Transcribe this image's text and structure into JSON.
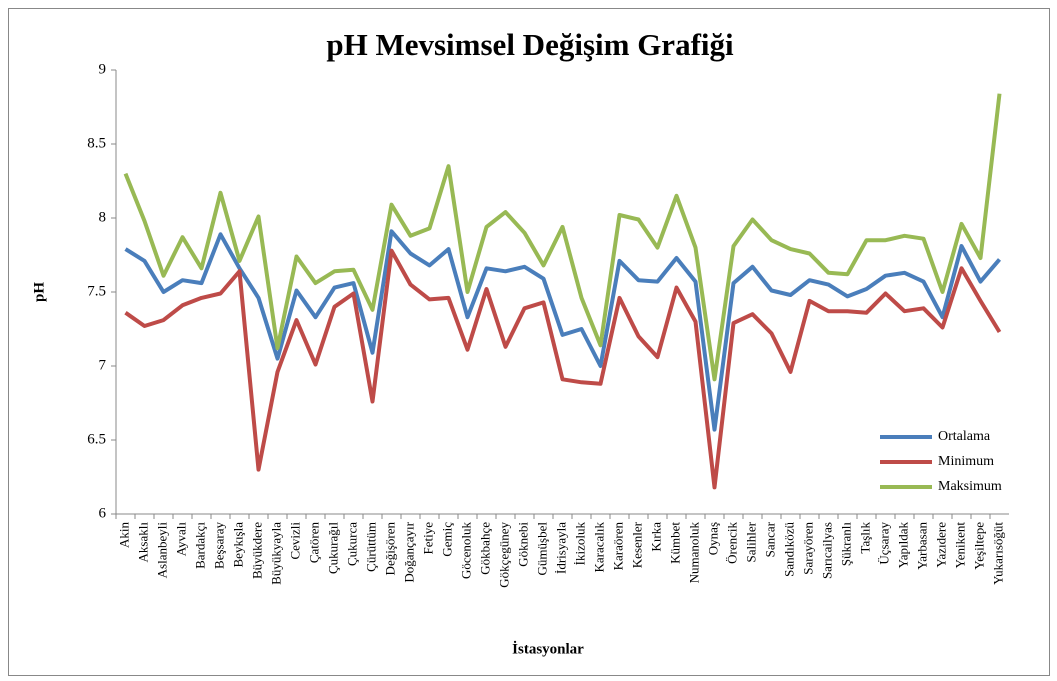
{
  "chart_data": {
    "type": "line",
    "title": "pH Mevsimsel Değişim Grafiği",
    "x_label": "İstasyonlar",
    "y_label": "pH",
    "categories": [
      "Akin",
      "Aksaklı",
      "Aslanbeyli",
      "Ayvalı",
      "Bardakçı",
      "Beşsaray",
      "Beykışla",
      "Büyükdere",
      "Büyükyayla",
      "Cevizli",
      "Çatören",
      "Çukurağıl",
      "Çukurca",
      "Çürüttüm",
      "Değişören",
      "Doğançayır",
      "Fetiye",
      "Gemiç",
      "Göcenoluk",
      "Gökbahçe",
      "Gökçegüney",
      "Göknebi",
      "Gümüşbel",
      "İdrisyayla",
      "İkizoluk",
      "Karacalık",
      "Karaören",
      "Kesenler",
      "Kırka",
      "Kümbet",
      "Numanoluk",
      "Oynaş",
      "Örencik",
      "Salihler",
      "Sancar",
      "Sandıközü",
      "Sarayören",
      "Sarıcailyas",
      "Şükranlı",
      "Taşlık",
      "Üçsaray",
      "Yapıldak",
      "Yarbasan",
      "Yazıdere",
      "Yenikent",
      "Yeşiltepe",
      "Yukarısöğüt"
    ],
    "series": [
      {
        "name": "Ortalama",
        "color": "#4a7ebb",
        "values": [
          7.79,
          7.71,
          7.5,
          7.58,
          7.56,
          7.89,
          7.66,
          7.46,
          7.05,
          7.51,
          7.33,
          7.53,
          7.56,
          7.09,
          7.91,
          7.76,
          7.68,
          7.79,
          7.33,
          7.66,
          7.64,
          7.67,
          7.59,
          7.21,
          7.25,
          7.0,
          7.71,
          7.58,
          7.57,
          7.73,
          7.57,
          6.57,
          7.56,
          7.67,
          7.51,
          7.48,
          7.58,
          7.55,
          7.47,
          7.52,
          7.61,
          7.63,
          7.57,
          7.33,
          7.81,
          7.57,
          7.72
        ]
      },
      {
        "name": "Minimum",
        "color": "#be4b48",
        "values": [
          7.36,
          7.27,
          7.31,
          7.41,
          7.46,
          7.49,
          7.64,
          6.3,
          6.96,
          7.31,
          7.01,
          7.4,
          7.49,
          6.76,
          7.78,
          7.55,
          7.45,
          7.46,
          7.11,
          7.52,
          7.13,
          7.39,
          7.43,
          6.91,
          6.89,
          6.88,
          7.46,
          7.2,
          7.06,
          7.53,
          7.3,
          6.18,
          7.29,
          7.35,
          7.22,
          6.96,
          7.44,
          7.37,
          7.37,
          7.36,
          7.49,
          7.37,
          7.39,
          7.26,
          7.66,
          7.44,
          7.23
        ]
      },
      {
        "name": "Maksimum",
        "color": "#98b954",
        "values": [
          8.3,
          7.98,
          7.61,
          7.87,
          7.66,
          8.17,
          7.71,
          8.01,
          7.12,
          7.74,
          7.56,
          7.64,
          7.65,
          7.38,
          8.09,
          7.88,
          7.93,
          8.35,
          7.5,
          7.94,
          8.04,
          7.9,
          7.68,
          7.94,
          7.46,
          7.14,
          8.02,
          7.99,
          7.8,
          8.15,
          7.8,
          6.91,
          7.81,
          7.99,
          7.85,
          7.79,
          7.76,
          7.63,
          7.62,
          7.85,
          7.85,
          7.88,
          7.86,
          7.5,
          7.96,
          7.73,
          8.84
        ]
      }
    ],
    "ylim": [
      6,
      9
    ],
    "yticks": [
      6,
      6.5,
      7,
      7.5,
      8,
      8.5,
      9
    ],
    "legend": "right"
  }
}
